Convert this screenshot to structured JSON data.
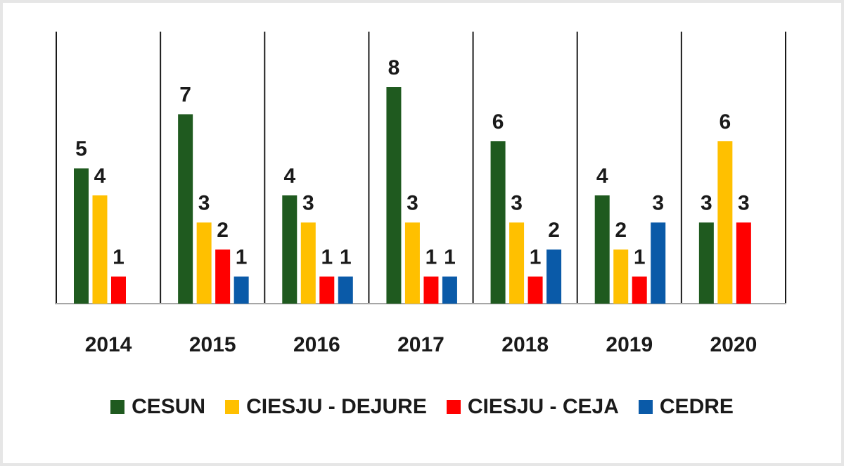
{
  "chart_data": {
    "type": "bar",
    "title": "",
    "xlabel": "",
    "ylabel": "",
    "ylim": [
      0,
      8
    ],
    "grid": false,
    "legend_position": "bottom",
    "categories": [
      "2014",
      "2015",
      "2016",
      "2017",
      "2018",
      "2019",
      "2020"
    ],
    "series": [
      {
        "name": "CESUN",
        "color": "#1f5a1f",
        "values": [
          5,
          7,
          4,
          8,
          6,
          4,
          3
        ]
      },
      {
        "name": "CIESJU - DEJURE",
        "color": "#ffc000",
        "values": [
          4,
          3,
          3,
          3,
          3,
          2,
          6
        ]
      },
      {
        "name": "CIESJU - CEJA",
        "color": "#ff0000",
        "values": [
          1,
          2,
          1,
          1,
          1,
          1,
          3
        ]
      },
      {
        "name": "CEDRE",
        "color": "#0a5aa8",
        "values": [
          null,
          1,
          1,
          1,
          2,
          3,
          null
        ]
      }
    ]
  }
}
